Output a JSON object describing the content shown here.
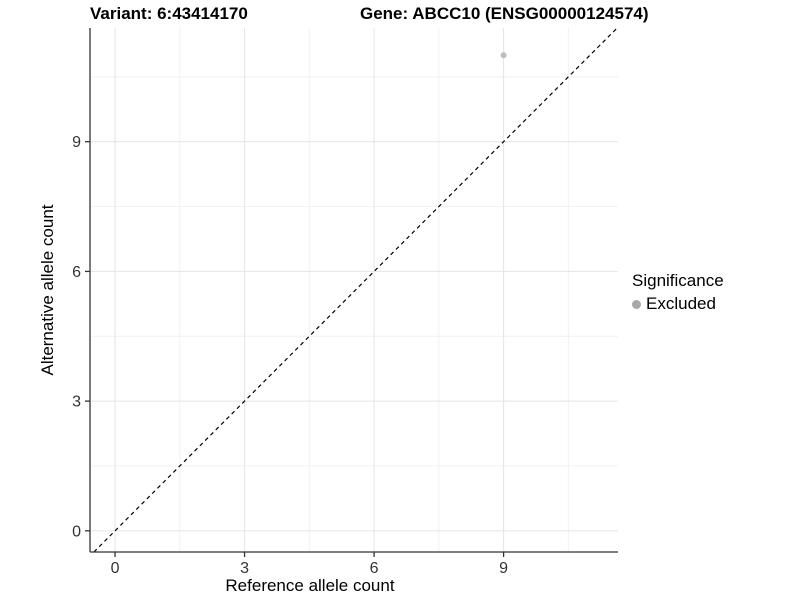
{
  "title": {
    "variant": "Variant: 6:43414170",
    "gene": "Gene: ABCC10 (ENSG00000124574)"
  },
  "chart_data": {
    "type": "scatter",
    "title": "Variant: 6:43414170        Gene: ABCC10 (ENSG00000124574)",
    "xlabel": "Reference allele count",
    "ylabel": "Alternative allele count",
    "xlim": [
      -0.58,
      11.65
    ],
    "ylim": [
      -0.49,
      11.63
    ],
    "x_major_ticks": [
      0,
      3,
      6,
      9
    ],
    "y_major_ticks": [
      0,
      3,
      6,
      9
    ],
    "x_minor_gridlines": [
      1.5,
      4.5,
      7.5,
      10.5
    ],
    "y_minor_gridlines": [
      1.5,
      4.5,
      7.5,
      10.5
    ],
    "grid": "on",
    "points": [
      {
        "x": 9,
        "y": 11,
        "series": "Excluded"
      }
    ],
    "reference_line": {
      "kind": "identity y=x",
      "style": "dashed",
      "color": "#000000"
    },
    "legend": {
      "title": "Significance",
      "position": "right",
      "entries": [
        {
          "label": "Excluded",
          "color": "#a8a8a8"
        }
      ]
    },
    "colors": {
      "point": "#bdbdbd",
      "legend_key": "#a8a8a8",
      "axis_line": "#333333",
      "tick_label": "#333333",
      "grid_major": "#e4e4e4",
      "grid_minor": "#f1f1f1",
      "background": "#ffffff"
    }
  }
}
